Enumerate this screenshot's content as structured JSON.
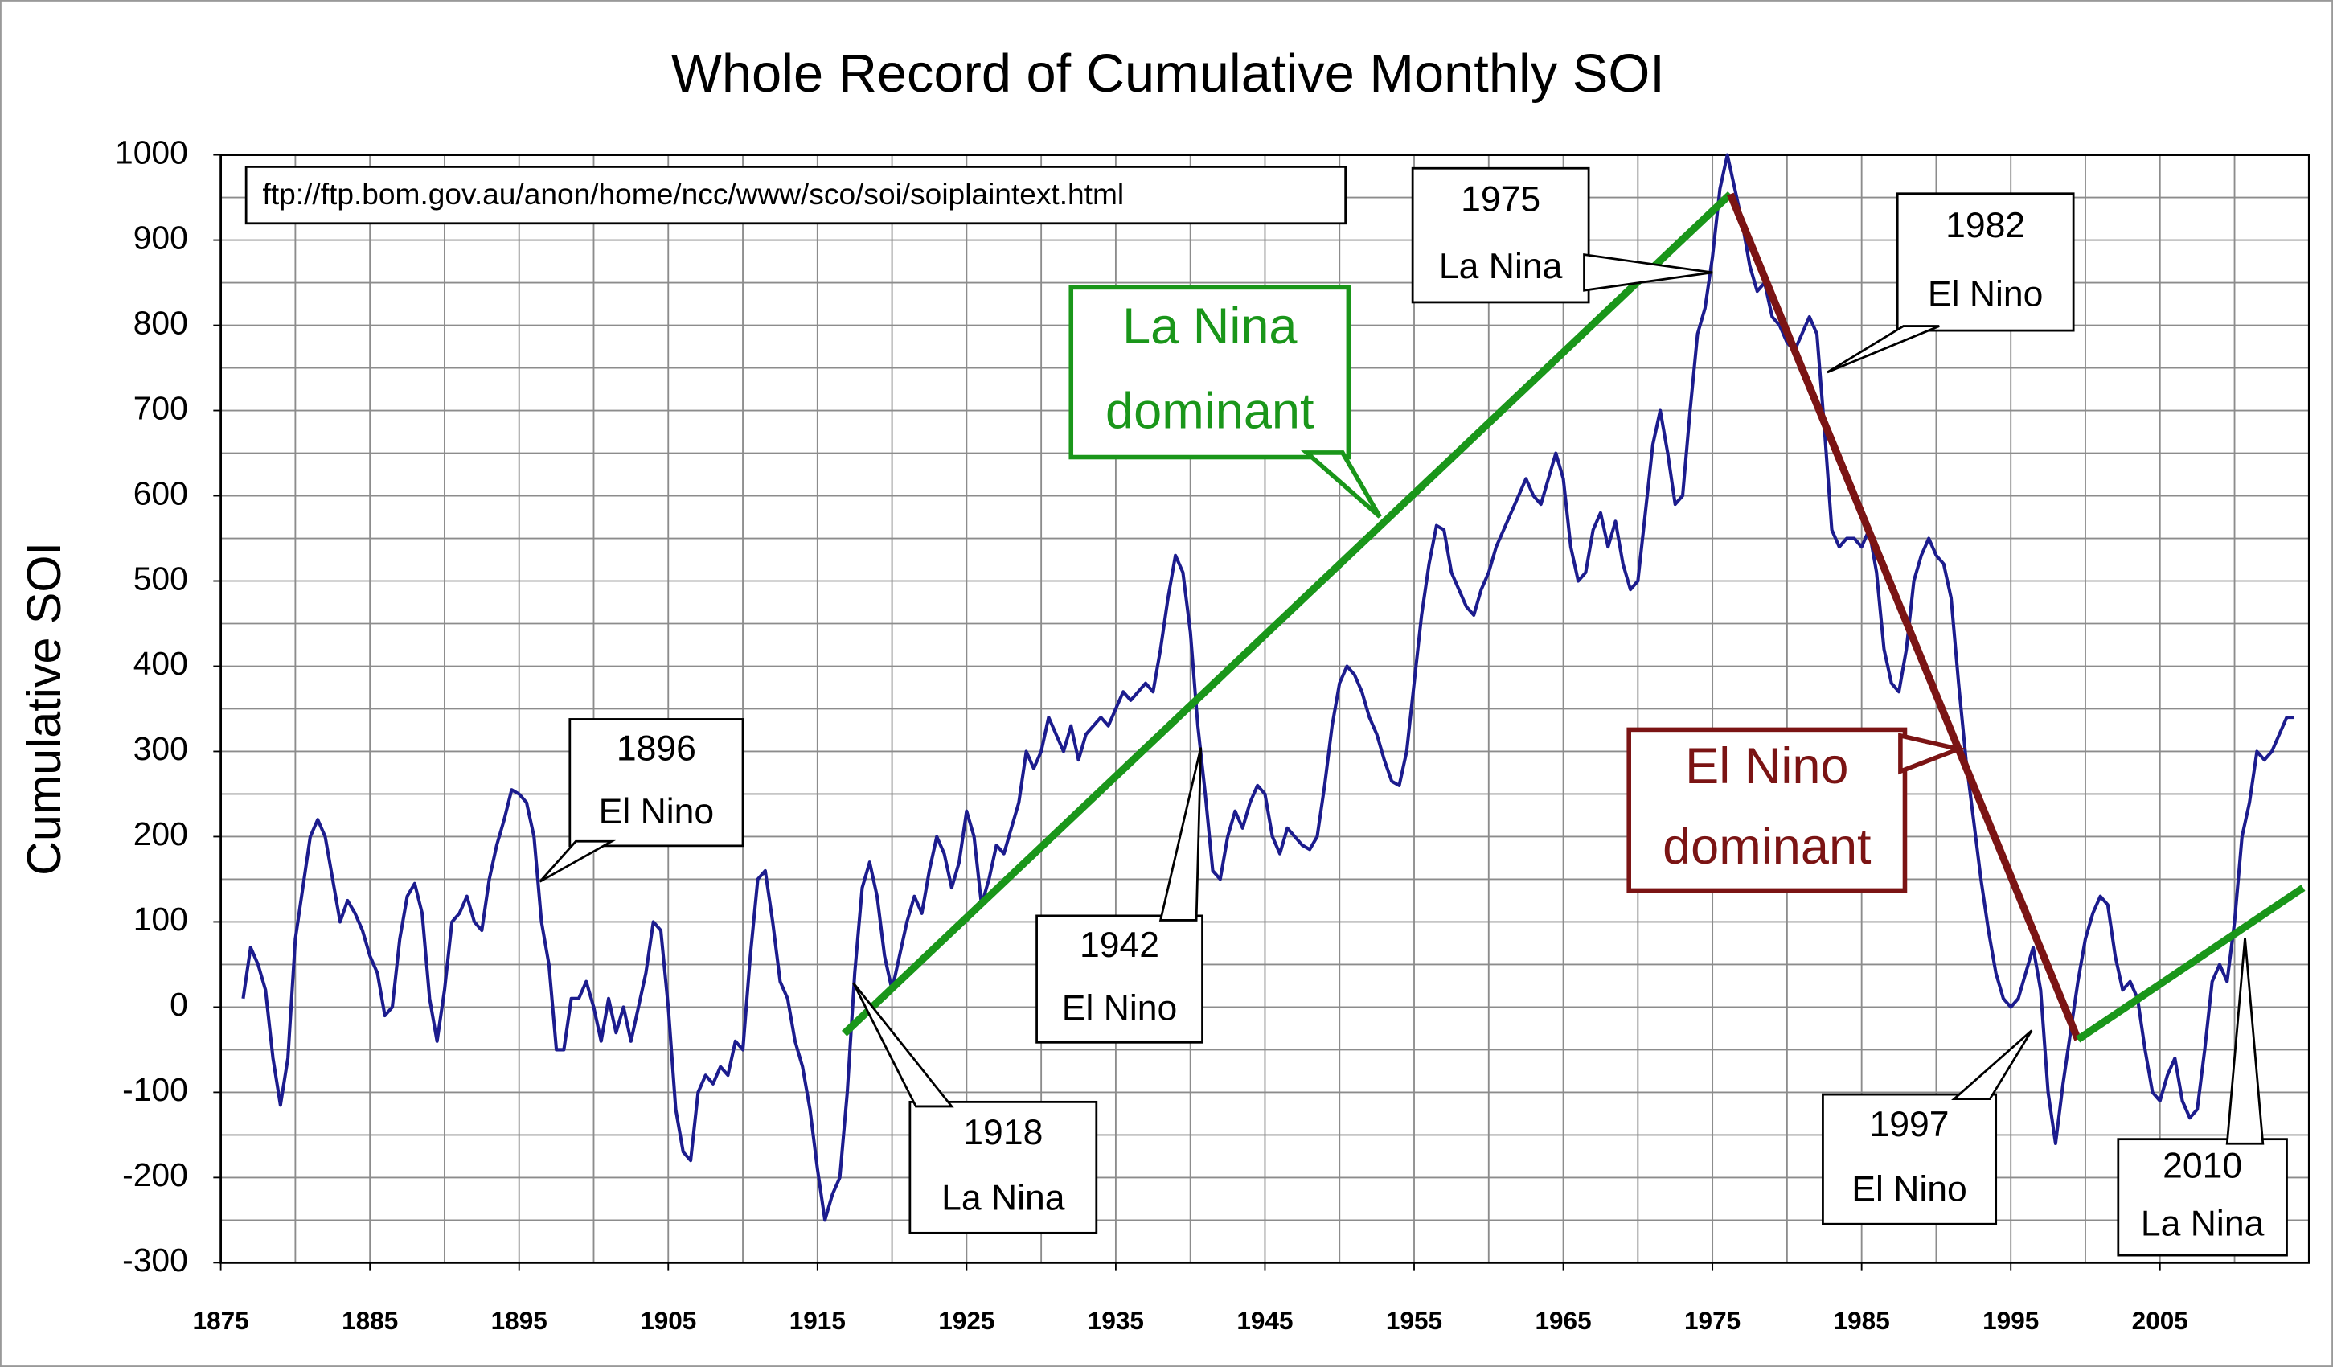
{
  "chart_data": {
    "type": "line",
    "title": "Whole Record of Cumulative Monthly SOI",
    "y_label": "Cumulative SOI",
    "source": "ftp://ftp.bom.gov.au/anon/home/ncc/www/sco/soi/soiplaintext.html",
    "xlim": [
      1875,
      2015
    ],
    "ylim": [
      -300,
      1000
    ],
    "xticks": [
      1875,
      1885,
      1895,
      1905,
      1915,
      1925,
      1935,
      1945,
      1955,
      1965,
      1975,
      1985,
      1995,
      2005
    ],
    "yticks": [
      -300,
      -200,
      -100,
      0,
      100,
      200,
      300,
      400,
      500,
      600,
      700,
      800,
      900,
      1000
    ],
    "xgrid": [
      1880,
      1885,
      1890,
      1895,
      1900,
      1905,
      1910,
      1915,
      1920,
      1925,
      1930,
      1935,
      1940,
      1945,
      1950,
      1955,
      1960,
      1965,
      1970,
      1975,
      1980,
      1985,
      1990,
      1995,
      2000,
      2005,
      2010
    ],
    "ygrid": [
      -250,
      -200,
      -150,
      -100,
      -50,
      0,
      50,
      100,
      150,
      200,
      250,
      300,
      350,
      400,
      450,
      500,
      550,
      600,
      650,
      700,
      750,
      800,
      850,
      900,
      950
    ],
    "series": [
      {
        "color": "#1c1c8e",
        "x": [
          1876.5,
          1877,
          1877.5,
          1878,
          1878.5,
          1879,
          1879.5,
          1880,
          1880.5,
          1881,
          1881.5,
          1882,
          1882.5,
          1883,
          1883.5,
          1884,
          1884.5,
          1885,
          1885.5,
          1886,
          1886.5,
          1887,
          1887.5,
          1888,
          1888.5,
          1889,
          1889.5,
          1890,
          1890.5,
          1891,
          1891.5,
          1892,
          1892.5,
          1893,
          1893.5,
          1894,
          1894.5,
          1895,
          1895.5,
          1896,
          1896.5,
          1897,
          1897.5,
          1898,
          1898.5,
          1899,
          1899.5,
          1900,
          1900.5,
          1901,
          1901.5,
          1902,
          1902.5,
          1903,
          1903.5,
          1904,
          1904.5,
          1905,
          1905.5,
          1906,
          1906.5,
          1907,
          1907.5,
          1908,
          1908.5,
          1909,
          1909.5,
          1910,
          1910.5,
          1911,
          1911.5,
          1912,
          1912.5,
          1913,
          1913.5,
          1914,
          1914.5,
          1915,
          1915.5,
          1916,
          1916.5,
          1917,
          1917.5,
          1918,
          1918.5,
          1919,
          1919.5,
          1920,
          1920.5,
          1921,
          1921.5,
          1922,
          1922.5,
          1923,
          1923.5,
          1924,
          1924.5,
          1925,
          1925.5,
          1926,
          1926.5,
          1927,
          1927.5,
          1928,
          1928.5,
          1929,
          1929.5,
          1930,
          1930.5,
          1931,
          1931.5,
          1932,
          1932.5,
          1933,
          1933.5,
          1934,
          1934.5,
          1935,
          1935.5,
          1936,
          1936.5,
          1937,
          1937.5,
          1938,
          1938.5,
          1939,
          1939.5,
          1940,
          1940.5,
          1941,
          1941.5,
          1942,
          1942.5,
          1943,
          1943.5,
          1944,
          1944.5,
          1945,
          1945.5,
          1946,
          1946.5,
          1947,
          1947.5,
          1948,
          1948.5,
          1949,
          1949.5,
          1950,
          1950.5,
          1951,
          1951.5,
          1952,
          1952.5,
          1953,
          1953.5,
          1954,
          1954.5,
          1955,
          1955.5,
          1956,
          1956.5,
          1957,
          1957.5,
          1958,
          1958.5,
          1959,
          1959.5,
          1960,
          1960.5,
          1961,
          1961.5,
          1962,
          1962.5,
          1963,
          1963.5,
          1964,
          1964.5,
          1965,
          1965.5,
          1966,
          1966.5,
          1967,
          1967.5,
          1968,
          1968.5,
          1969,
          1969.5,
          1970,
          1970.5,
          1971,
          1971.5,
          1972,
          1972.5,
          1973,
          1973.5,
          1974,
          1974.5,
          1975,
          1975.5,
          1976,
          1976.5,
          1977,
          1977.5,
          1978,
          1978.5,
          1979,
          1979.5,
          1980,
          1980.5,
          1981,
          1981.5,
          1982,
          1982.5,
          1983,
          1983.5,
          1984,
          1984.5,
          1985,
          1985.5,
          1986,
          1986.5,
          1987,
          1987.5,
          1988,
          1988.5,
          1989,
          1989.5,
          1990,
          1990.5,
          1991,
          1991.5,
          1992,
          1992.5,
          1993,
          1993.5,
          1994,
          1994.5,
          1995,
          1995.5,
          1996,
          1996.5,
          1997,
          1997.5,
          1998,
          1998.5,
          1999,
          1999.5,
          2000,
          2000.5,
          2001,
          2001.5,
          2002,
          2002.5,
          2003,
          2003.5,
          2004,
          2004.5,
          2005,
          2005.5,
          2006,
          2006.5,
          2007,
          2007.5,
          2008,
          2008.5,
          2009,
          2009.5,
          2010,
          2010.5,
          2011,
          2011.5,
          2012,
          2012.5,
          2013,
          2013.5,
          2014
        ],
        "values": [
          10,
          70,
          50,
          20,
          -60,
          -115,
          -60,
          80,
          140,
          200,
          220,
          200,
          150,
          100,
          125,
          110,
          90,
          60,
          40,
          -10,
          0,
          80,
          130,
          145,
          110,
          10,
          -40,
          20,
          100,
          110,
          130,
          100,
          90,
          150,
          190,
          220,
          255,
          250,
          240,
          200,
          100,
          50,
          -50,
          -50,
          10,
          10,
          30,
          0,
          -40,
          10,
          -30,
          0,
          -40,
          0,
          40,
          100,
          90,
          0,
          -120,
          -170,
          -180,
          -100,
          -80,
          -90,
          -70,
          -80,
          -40,
          -50,
          60,
          150,
          160,
          100,
          30,
          10,
          -40,
          -70,
          -120,
          -190,
          -250,
          -220,
          -200,
          -100,
          40,
          140,
          170,
          130,
          60,
          20,
          60,
          100,
          130,
          110,
          160,
          200,
          180,
          140,
          170,
          230,
          200,
          120,
          150,
          190,
          180,
          210,
          240,
          300,
          280,
          300,
          340,
          320,
          300,
          330,
          290,
          320,
          330,
          340,
          330,
          350,
          370,
          360,
          370,
          380,
          370,
          420,
          480,
          530,
          510,
          440,
          330,
          250,
          160,
          150,
          200,
          230,
          210,
          240,
          260,
          250,
          200,
          180,
          210,
          200,
          190,
          185,
          200,
          260,
          330,
          380,
          400,
          390,
          370,
          340,
          320,
          290,
          265,
          260,
          300,
          380,
          460,
          520,
          565,
          560,
          510,
          490,
          470,
          460,
          490,
          510,
          540,
          560,
          580,
          600,
          620,
          600,
          590,
          620,
          650,
          620,
          540,
          500,
          510,
          560,
          580,
          540,
          570,
          520,
          490,
          500,
          580,
          660,
          700,
          650,
          590,
          600,
          700,
          790,
          820,
          880,
          960,
          1000,
          960,
          920,
          870,
          840,
          850,
          810,
          800,
          780,
          770,
          790,
          810,
          790,
          680,
          560,
          540,
          550,
          550,
          540,
          560,
          510,
          420,
          380,
          370,
          420,
          500,
          530,
          550,
          530,
          520,
          480,
          380,
          290,
          220,
          150,
          90,
          40,
          10,
          0,
          10,
          40,
          70,
          20,
          -100,
          -160,
          -90,
          -30,
          30,
          80,
          110,
          130,
          120,
          60,
          20,
          30,
          10,
          -50,
          -100,
          -110,
          -80,
          -60,
          -110,
          -130,
          -120,
          -50,
          30,
          50,
          30,
          100,
          200,
          240,
          300,
          290,
          300,
          320,
          340,
          340
        ]
      }
    ],
    "trend_lines": [
      {
        "color": "#1a961a",
        "x": [
          1916.8,
          1976.2
        ],
        "values": [
          -31,
          954
        ]
      },
      {
        "color": "#7b1414",
        "x": [
          1976.2,
          1999.5
        ],
        "values": [
          954,
          -38
        ]
      },
      {
        "color": "#1a961a",
        "x": [
          1999.5,
          2014.6
        ],
        "values": [
          -38,
          140
        ]
      }
    ],
    "annotations": [
      {
        "lines": [
          "1975",
          "La Nina"
        ]
      },
      {
        "lines": [
          "1982",
          "El Nino"
        ]
      },
      {
        "lines": [
          "La Nina",
          "dominant"
        ],
        "color": "#1a961a"
      },
      {
        "lines": [
          "1896",
          "El Nino"
        ]
      },
      {
        "lines": [
          "1942",
          "El Nino"
        ]
      },
      {
        "lines": [
          "1918",
          "La Nina"
        ]
      },
      {
        "lines": [
          "El Nino",
          "dominant"
        ],
        "color": "#7b1414"
      },
      {
        "lines": [
          "1997",
          "El Nino"
        ]
      },
      {
        "lines": [
          "2010",
          "La Nina"
        ]
      }
    ]
  }
}
